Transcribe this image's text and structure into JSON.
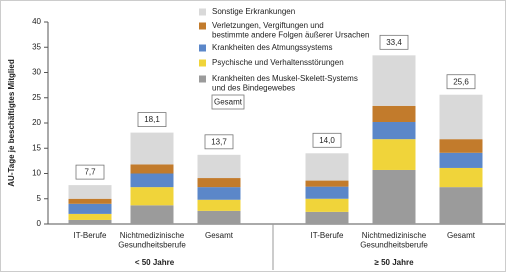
{
  "chart_data": {
    "type": "stacked_bar",
    "y_label": "AU-Tage je beschäftigtes Mitglied",
    "categories": [
      "IT-Berufe",
      "Nichtmedizinische\nGesundheitsberufe",
      "Gesamt",
      "IT-Berufe",
      "Nichtmedizinische\nGesundheitsberufe",
      "Gesamt"
    ],
    "groups": [
      {
        "label": "< 50 Jahre",
        "size": 3
      },
      {
        "label": "≥ 50 Jahre",
        "size": 3
      }
    ],
    "series": [
      {
        "name": "Sonstige Erkrankungen",
        "color": "#d9d9d9",
        "values": [
          2.7,
          6.3,
          4.6,
          5.4,
          10.0,
          8.8
        ]
      },
      {
        "name": "Verletzungen, Vergiftungen und\nbestimmte andere Folgen äußerer Ursachen",
        "color": "#c27b2c",
        "values": [
          1.0,
          1.8,
          1.8,
          1.2,
          3.2,
          2.7
        ]
      },
      {
        "name": "Krankheiten des Atmungssystems",
        "color": "#5b87c9",
        "values": [
          2.0,
          2.7,
          2.5,
          2.4,
          3.4,
          3.0
        ]
      },
      {
        "name": "Psychische und Verhaltensstörungen",
        "color": "#f0d43a",
        "values": [
          1.2,
          3.6,
          2.2,
          2.6,
          6.1,
          3.8
        ]
      },
      {
        "name": "Krankheiten des Muskel-Skelett-Systems\nund des Bindegewebes",
        "color": "#9b9b9b",
        "values": [
          0.8,
          3.7,
          2.6,
          2.4,
          10.7,
          7.3
        ]
      }
    ],
    "totals": {
      "name": "Gesamt",
      "values": [
        7.7,
        18.1,
        13.7,
        14.0,
        33.4,
        25.6
      ],
      "value_labels": [
        "7,7",
        "18,1",
        "13,7",
        "14,0",
        "33,4",
        "25,6"
      ]
    },
    "ylim": [
      0,
      40
    ],
    "yticks": [
      0,
      5,
      10,
      15,
      20,
      25,
      30,
      35,
      40
    ]
  }
}
